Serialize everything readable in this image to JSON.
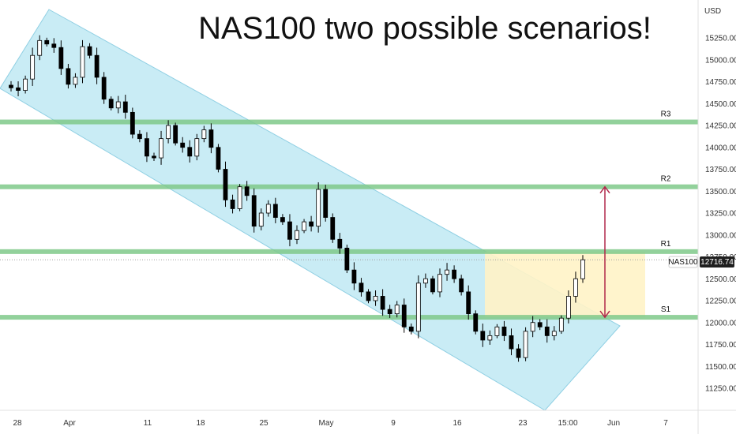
{
  "title": "NAS100 two possible scenarios!",
  "currency": "USD",
  "symbol_tag": "NAS100",
  "last_price_label": "12716.74",
  "chart_data": {
    "type": "candlestick",
    "title": "NAS100 two possible scenarios!",
    "symbol": "NAS100",
    "ylim": [
      11000,
      15600
    ],
    "y_ticks": [
      "15250.00",
      "15000.00",
      "14750.00",
      "14500.00",
      "14250.00",
      "14000.00",
      "13750.00",
      "13500.00",
      "13250.00",
      "13000.00",
      "12750.00",
      "12500.00",
      "12250.00",
      "12000.00",
      "11750.00",
      "11500.00",
      "11250.00"
    ],
    "x_ticks": [
      "28",
      "Apr",
      "11",
      "18",
      "25",
      "May",
      "9",
      "16",
      "23",
      "15:00",
      "Jun",
      "7"
    ],
    "last_price": 12716.74,
    "levels": [
      {
        "label": "R3",
        "value": 14290
      },
      {
        "label": "R2",
        "value": 13550
      },
      {
        "label": "R1",
        "value": 12810
      },
      {
        "label": "S1",
        "value": 12060
      }
    ],
    "trend_channel": {
      "upper_start": [
        0,
        15380
      ],
      "upper_end": [
        95,
        12140
      ],
      "lower_start": [
        0,
        14600
      ],
      "lower_end": [
        95,
        11040
      ]
    },
    "closes": [
      14680,
      14650,
      14780,
      15050,
      15220,
      15180,
      15140,
      14900,
      14720,
      14800,
      15150,
      15050,
      14800,
      14550,
      14450,
      14520,
      14400,
      14150,
      14100,
      13900,
      13880,
      14100,
      14250,
      14050,
      14000,
      13900,
      14100,
      14200,
      14000,
      13750,
      13400,
      13300,
      13550,
      13450,
      13100,
      13250,
      13350,
      13200,
      13150,
      12950,
      13050,
      13150,
      13100,
      13520,
      13200,
      12950,
      12850,
      12600,
      12450,
      12350,
      12250,
      12300,
      12150,
      12100,
      12200,
      11950,
      11900,
      12450,
      12500,
      12350,
      12550,
      12600,
      12500,
      12350,
      12100,
      11900,
      11800,
      11850,
      11950,
      11850,
      11700,
      11600,
      11900,
      12000,
      11950,
      11850,
      11900,
      12050,
      12300,
      12500,
      12716.74
    ],
    "scenarios": [
      {
        "direction": "up",
        "from": 12716.74,
        "to": 13550
      },
      {
        "direction": "down",
        "from": 12716.74,
        "to": 12060
      }
    ]
  }
}
